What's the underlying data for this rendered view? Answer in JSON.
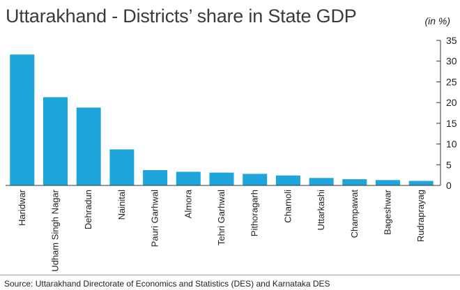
{
  "chart_data": {
    "type": "bar",
    "title": "Uttarakhand - Districts’ share in State GDP",
    "unit": "(in %)",
    "categories": [
      "Haridwar",
      "Udham Singh Nagar",
      "Dehradun",
      "Nainital",
      "Pauri Garhwal",
      "Almora",
      "Tehri Garhwal",
      "Pithoragarh",
      "Chamoli",
      "Uttarkashi",
      "Champawat",
      "Bageshwar",
      "Rudraprayag"
    ],
    "values": [
      31.6,
      21.3,
      18.8,
      8.7,
      3.7,
      3.3,
      3.1,
      2.8,
      2.4,
      1.8,
      1.5,
      1.3,
      1.1
    ],
    "yticks": [
      "0",
      "5",
      "10",
      "15",
      "20",
      "25",
      "30",
      "35"
    ],
    "ylim": [
      0,
      35
    ],
    "grid": false,
    "bar_color": "#1ea6dc",
    "source": "Source: Uttarakhand Directorate of Economics and Statistics (DES) and Karnataka DES"
  }
}
